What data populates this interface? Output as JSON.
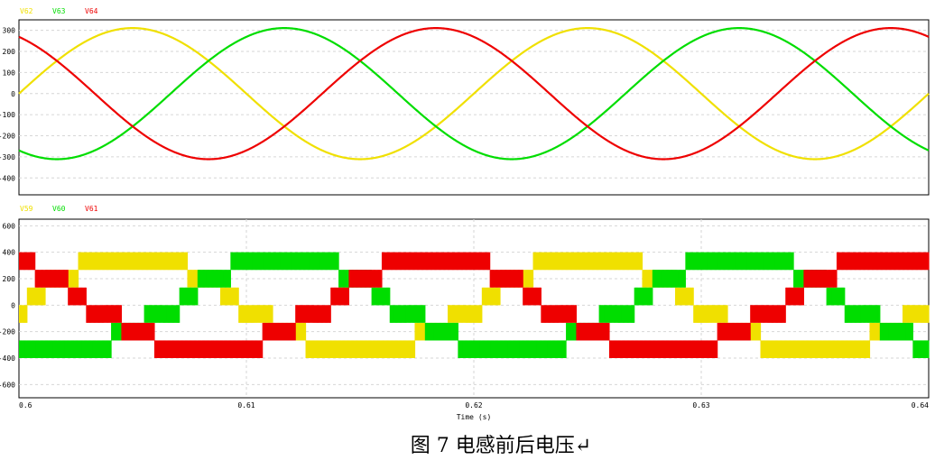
{
  "caption": "图 7 电感前后电压↵",
  "chart_data": [
    {
      "type": "line",
      "title": "",
      "xlabel": "",
      "ylabel": "",
      "xlim": [
        0.6,
        0.64
      ],
      "ylim": [
        -480,
        350
      ],
      "yticks": [
        300,
        200,
        100,
        0,
        -100,
        -200,
        -300,
        -400
      ],
      "grid": true,
      "legend_placement": "top-left",
      "frequency_hz": 50,
      "amplitude": 311,
      "series": [
        {
          "name": "V62",
          "color": "#f0e000",
          "phase_deg": 0
        },
        {
          "name": "V63",
          "color": "#00dd00",
          "phase_deg": -120
        },
        {
          "name": "V64",
          "color": "#ee0000",
          "phase_deg": 120
        }
      ]
    },
    {
      "type": "line",
      "title": "",
      "xlabel": "Time (s)",
      "ylabel": "",
      "xlim": [
        0.6,
        0.64
      ],
      "ylim": [
        -700,
        650
      ],
      "yticks": [
        600,
        400,
        200,
        0,
        -200,
        -400,
        -600
      ],
      "xticks": [
        0.6,
        0.61,
        0.62,
        0.63,
        0.64
      ],
      "grid": true,
      "legend_placement": "top-left",
      "frequency_hz": 50,
      "dc_link": 400,
      "description_levels": [
        -533,
        -400,
        -267,
        -133,
        0,
        133,
        267,
        400,
        533
      ],
      "series": [
        {
          "name": "V59",
          "color": "#f0e000",
          "phase_deg": 0
        },
        {
          "name": "V60",
          "color": "#00dd00",
          "phase_deg": -120
        },
        {
          "name": "V61",
          "color": "#ee0000",
          "phase_deg": 120
        }
      ]
    }
  ]
}
